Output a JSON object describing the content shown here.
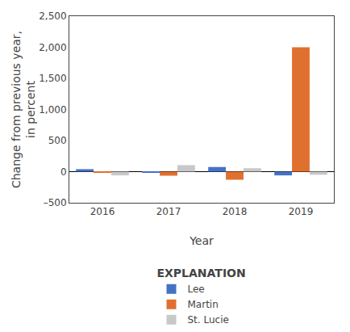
{
  "chart_data": {
    "type": "bar",
    "xlabel": "Year",
    "ylabel": "Change from previous year,\nin percent",
    "categories": [
      "2016",
      "2017",
      "2018",
      "2019"
    ],
    "series": [
      {
        "name": "Lee",
        "color": "#4472c4",
        "values": [
          40,
          -20,
          75,
          -60
        ]
      },
      {
        "name": "Martin",
        "color": "#e07030",
        "values": [
          -20,
          -65,
          -130,
          2000
        ]
      },
      {
        "name": "St. Lucie",
        "color": "#c8c8c8",
        "values": [
          -60,
          105,
          55,
          -50
        ]
      }
    ],
    "ylim": [
      -500,
      2500
    ],
    "yticks": [
      {
        "value": -500,
        "label": "–500"
      },
      0,
      500,
      {
        "value": 1000,
        "label": "1,000"
      },
      {
        "value": 1500,
        "label": "1,500"
      },
      {
        "value": 2000,
        "label": "2,000"
      },
      {
        "value": 2500,
        "label": "2,500"
      }
    ],
    "grid": false,
    "legend": "bottom",
    "legend_title": "EXPLANATION"
  }
}
